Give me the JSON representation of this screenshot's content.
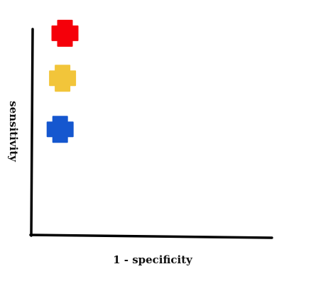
{
  "chart_data": {
    "type": "scatter",
    "xlabel": "1 - specificity",
    "ylabel": "sensitivity",
    "xlim": [
      0,
      1
    ],
    "ylim": [
      0,
      1
    ],
    "grid": false,
    "marker": "plus",
    "series": [
      {
        "color": "#f5000a",
        "x": [
          0.14
        ],
        "y": [
          0.99
        ]
      },
      {
        "color": "#f2c53a",
        "x": [
          0.13
        ],
        "y": [
          0.77
        ]
      },
      {
        "color": "#1557cf",
        "x": [
          0.12
        ],
        "y": [
          0.52
        ]
      }
    ]
  }
}
